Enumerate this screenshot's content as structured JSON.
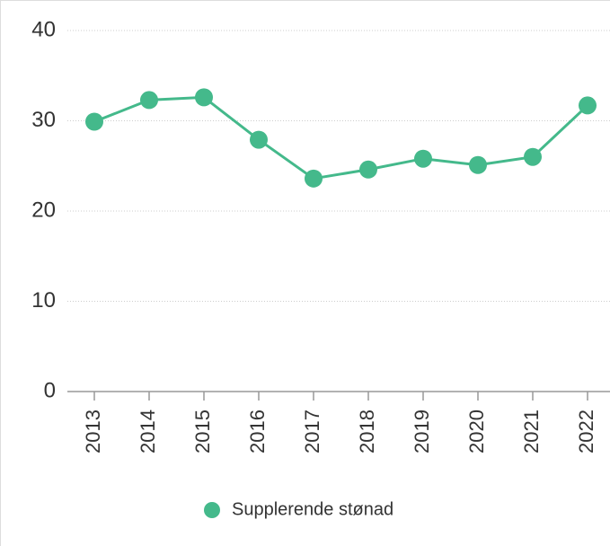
{
  "chart_data": {
    "type": "line",
    "categories": [
      "2013",
      "2014",
      "2015",
      "2016",
      "2017",
      "2018",
      "2019",
      "2020",
      "2021",
      "2022"
    ],
    "series": [
      {
        "name": "Supplerende stønad",
        "color": "#44b98b",
        "values": [
          29.9,
          32.3,
          32.6,
          27.9,
          23.6,
          24.6,
          25.8,
          25.1,
          26.0,
          31.7
        ]
      }
    ],
    "ylim": [
      0,
      40
    ],
    "yticks": [
      0,
      10,
      20,
      30,
      40
    ],
    "grid": true,
    "legend": "bottom"
  }
}
